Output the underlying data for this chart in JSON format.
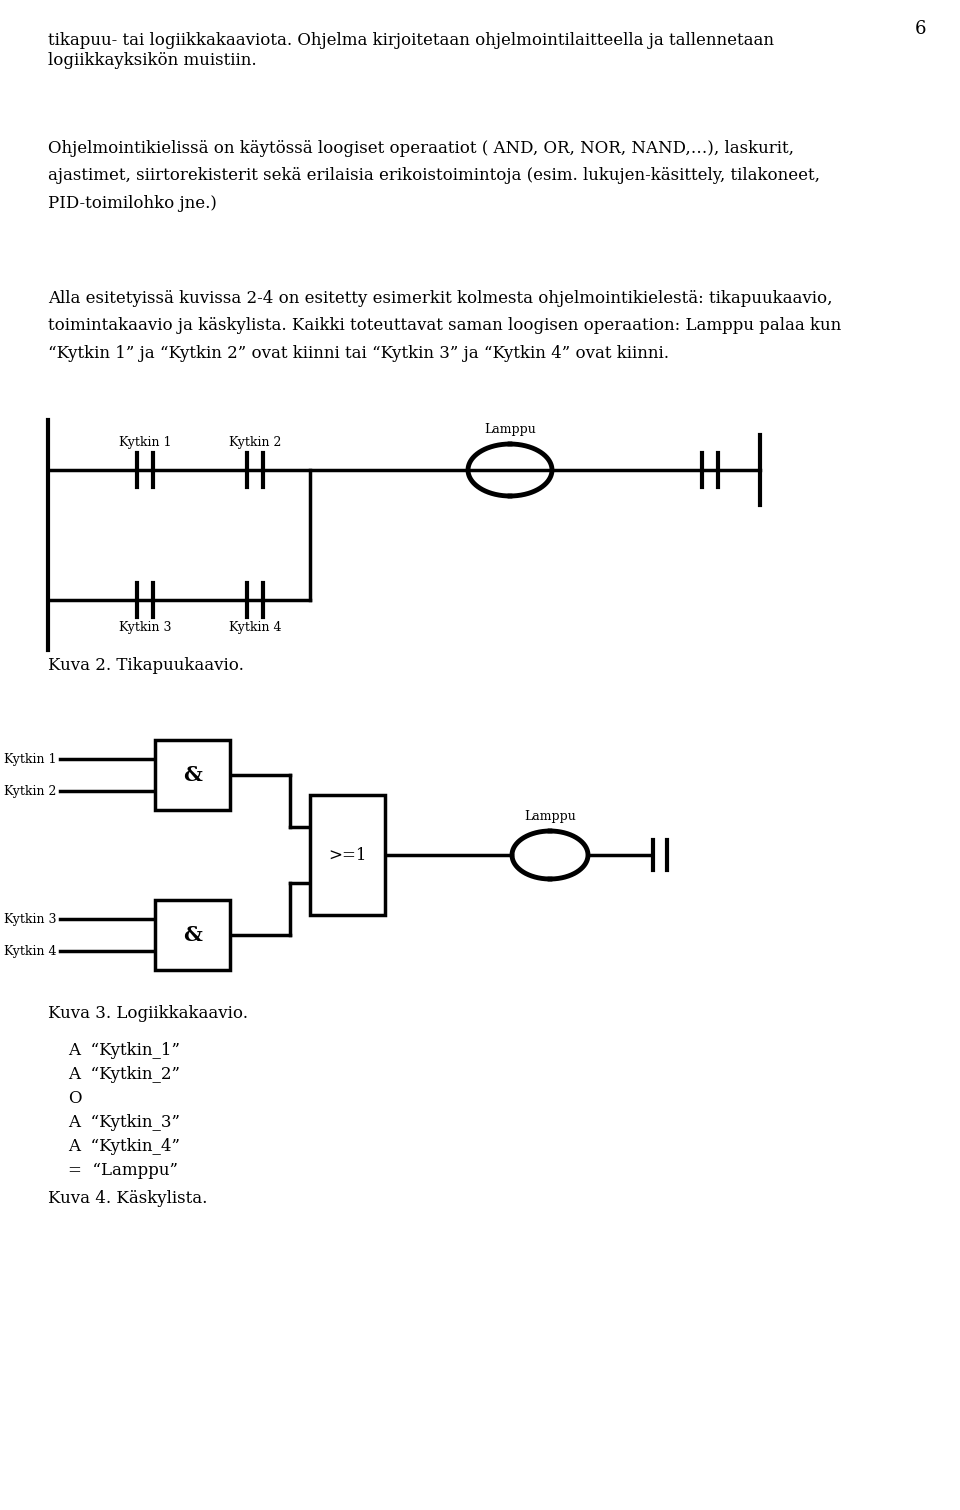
{
  "page_number": "6",
  "background_color": "#ffffff",
  "line_color": "#000000",
  "lw": 2.5,
  "text1": "tikapuu- tai logiikkakaaviota. Ohjelma kirjoitetaan ohjelmointilaitteella ja tallennetaan\nlogiikkayksikön muistiin.",
  "text2": "Ohjelmointikielissä on käytössä loogiset operaatiot ( AND, OR, NOR, NAND,…), laskurit,\najastimet, siirtorekisterit sekä erilaisia erikoistoimintoja (esim. lukujen-käsittely, tilakoneet,\nPID-toimilohko jne.)",
  "text3": "Alla esitetyissä kuvissa 2-4 on esitetty esimerkit kolmesta ohjelmointikielestä: tikapuukaavio,\ntoimintakaavio ja käskylista. Kaikki toteuttavat saman loogisen operaation: Lamppu palaa kun\n“Kytkin 1” ja “Kytkin 2” ovat kiinni tai “Kytkin 3” ja “Kytkin 4” ovat kiinni.",
  "caption2": "Kuva 2. Tikapuukaavio.",
  "caption3": "Kuva 3. Logiikkakaavio.",
  "caption4": "Kuva 4. Käskylista.",
  "inst_list": [
    "A  “Kytkin_1”",
    "A  “Kytkin_2”",
    "O",
    "A  “Kytkin_3”",
    "A  “Kytkin_4”",
    "=  “Lamppu”"
  ],
  "fontsize_body": 12,
  "fontsize_label": 9,
  "fontsize_caption": 12
}
